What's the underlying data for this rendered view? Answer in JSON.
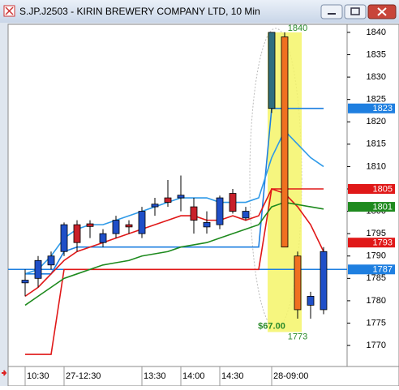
{
  "window_title": "S.JP.J2503 - KIRIN BREWERY COMPANY LTD, 10 Min",
  "chart_data": {
    "type": "candlestick",
    "categories": [
      "10:30",
      null,
      null,
      "27-12:30",
      null,
      null,
      null,
      null,
      null,
      "13:30",
      null,
      null,
      "14:00",
      null,
      null,
      "14:30",
      null,
      null,
      null,
      "28-09:00",
      null,
      null,
      null,
      null
    ],
    "open": [
      1784,
      1785,
      1788,
      1791,
      1797,
      1797.2,
      1793,
      1795,
      1797,
      1795,
      1801,
      1803,
      1803,
      1801,
      1796.5,
      1797,
      1804,
      1798.5,
      null,
      1823,
      1839,
      1790,
      1779,
      1778
    ],
    "high": [
      1787,
      1790,
      1791,
      1797.5,
      1798,
      1798,
      1796,
      1799,
      1798,
      1801,
      1803,
      1807,
      1808,
      1803,
      1800,
      1803.5,
      1805,
      1801,
      null,
      1840,
      1840,
      1791,
      1782,
      1792
    ],
    "low": [
      1781,
      1783,
      1787,
      1790,
      1791,
      1794,
      1792,
      1794,
      1795,
      1794,
      1799,
      1801,
      1800,
      1795,
      1795,
      1796,
      1799.5,
      1798,
      null,
      1822,
      1792,
      1776,
      1776,
      1777
    ],
    "close": [
      1784.6,
      1789,
      1790,
      1797,
      1793,
      1796.6,
      1795,
      1798,
      1796.5,
      1800,
      1801.6,
      1802,
      1803.6,
      1798,
      1797.5,
      1803,
      1800,
      1800,
      null,
      1840,
      1792,
      1778,
      1781,
      1791
    ],
    "colors": [
      "#1f4fc8",
      "#1f4fc8",
      "#1f4fc8",
      "#1f4fc8",
      "#c8202a",
      "#c8202a",
      "#1f4fc8",
      "#1f4fc8",
      "#c8202a",
      "#1f4fc8",
      "#1f4fc8",
      "#c8202a",
      "#1f4fc8",
      "#c8202a",
      "#1f4fc8",
      "#1f4fc8",
      "#c8202a",
      "#1f4fc8",
      null,
      "#2f6f80",
      "#f07020",
      "#f07020",
      "#1f4fc8",
      "#1f4fc8"
    ],
    "series": [
      {
        "color": "#1e7fe0",
        "values": [
          1786,
          1786,
          1786,
          1791,
          1792,
          1792,
          1792,
          1792,
          1792,
          1792,
          1792,
          1792,
          1792,
          1792,
          1792,
          1792,
          1792,
          1792,
          1792,
          1823,
          1823,
          1823,
          1823,
          1823
        ]
      },
      {
        "color": "#e01818",
        "values": [
          1768,
          1768,
          1768,
          1787,
          1787,
          1787,
          1787,
          1787,
          1787,
          1787,
          1787,
          1787,
          1787,
          1787,
          1787,
          1787,
          1787,
          1787,
          1787,
          1805,
          1805,
          1805,
          1805,
          1805
        ]
      },
      {
        "color": "#2f9ae8",
        "values": [
          1786,
          1787,
          1790,
          1794,
          1796,
          1797,
          1797,
          1798,
          1799,
          1800,
          1801,
          1802,
          1803,
          1803,
          1803,
          1802,
          1802,
          1802,
          1803,
          1812,
          1818,
          1815,
          1812,
          1810
        ]
      },
      {
        "color": "#e01818",
        "values": [
          1781,
          1783,
          1786,
          1789,
          1791,
          1792,
          1793,
          1794,
          1795,
          1796,
          1797,
          1798,
          1799,
          1799,
          1798,
          1798,
          1799,
          1798,
          1799,
          1805,
          1804,
          1801,
          1797,
          1791
        ]
      },
      {
        "color": "#1e8a1e",
        "values": [
          1779,
          1781,
          1783,
          1785,
          1786,
          1787,
          1788,
          1788.5,
          1789,
          1790,
          1790.5,
          1791,
          1792,
          1792.5,
          1793,
          1794,
          1795,
          1796,
          1797,
          1801,
          1802,
          1801.5,
          1801,
          1800.5
        ]
      }
    ],
    "hline": {
      "value": 1787,
      "color": "#1e7fe0"
    },
    "price_tags": [
      {
        "value": 1823,
        "color": "#1e7fe0"
      },
      {
        "value": 1805,
        "color": "#e01818"
      },
      {
        "value": 1801,
        "color": "#1e8a1e"
      },
      {
        "value": 1793,
        "color": "#e01818"
      },
      {
        "value": 1787,
        "color": "#1e7fe0"
      }
    ],
    "highlight": {
      "from": 19,
      "to": 21,
      "high": 1840,
      "low": 1773,
      "range_text": "$67.00",
      "color": "#f4f468"
    },
    "ylim": [
      1765.3,
      1841.8
    ],
    "yticks": [
      1770,
      1775,
      1780,
      1785,
      1790,
      1795,
      1800,
      1805,
      1810,
      1815,
      1820,
      1825,
      1830,
      1835,
      1840
    ]
  }
}
